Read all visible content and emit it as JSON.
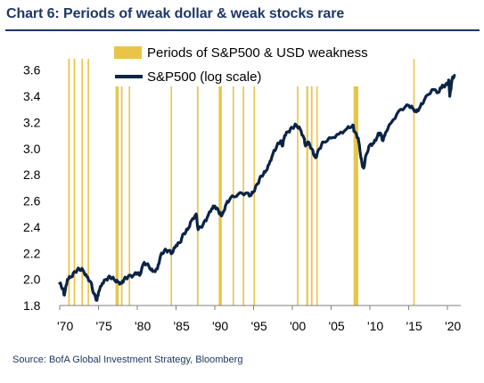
{
  "title": "Chart 6: Periods of weak dollar & weak stocks rare",
  "source": "Source: BofA Global Investment Strategy, Bloomberg",
  "colors": {
    "title": "#1f3864",
    "band": "#e8c547",
    "line": "#0b2446",
    "axis": "#7f7f7f"
  },
  "chart_data": {
    "type": "line",
    "title": "Chart 6: Periods of weak dollar & weak stocks rare",
    "xlabel": "",
    "ylabel": "",
    "xlim": [
      1970,
      2021.5
    ],
    "ylim": [
      1.8,
      3.7
    ],
    "x_ticks": [
      1970,
      1975,
      1980,
      1985,
      1990,
      1995,
      2000,
      2005,
      2010,
      2015,
      2020
    ],
    "x_tick_labels": [
      "'70",
      "'75",
      "'80",
      "'85",
      "'90",
      "'95",
      "'00",
      "'05",
      "'10",
      "'15",
      "'20"
    ],
    "y_ticks": [
      1.8,
      2.0,
      2.2,
      2.4,
      2.6,
      2.8,
      3.0,
      3.2,
      3.4,
      3.6
    ],
    "y_tick_labels": [
      "1.8",
      "2.0",
      "2.2",
      "2.4",
      "2.6",
      "2.8",
      "3.0",
      "3.2",
      "3.4",
      "3.6"
    ],
    "legend": [
      "Periods of S&P500 & USD weakness",
      "S&P500 (log scale)"
    ],
    "legend_position": "top",
    "grid": false,
    "weakness_periods": [
      [
        1971.1,
        1971.3
      ],
      [
        1971.8,
        1972.0
      ],
      [
        1972.8,
        1973.0
      ],
      [
        1973.6,
        1973.75
      ],
      [
        1977.2,
        1977.6
      ],
      [
        1977.9,
        1978.1
      ],
      [
        1978.9,
        1979.0
      ],
      [
        1984.3,
        1984.45
      ],
      [
        1987.7,
        1987.9
      ],
      [
        1990.5,
        1990.9
      ],
      [
        1992.3,
        1992.45
      ],
      [
        1993.6,
        1993.75
      ],
      [
        1995.0,
        1995.1
      ],
      [
        2000.6,
        2000.75
      ],
      [
        2001.8,
        2002.05
      ],
      [
        2002.4,
        2002.6
      ],
      [
        2003.1,
        2003.25
      ],
      [
        2007.9,
        2008.5
      ],
      [
        2015.6,
        2015.75
      ]
    ],
    "series": [
      {
        "name": "S&P500 (log scale)",
        "x": [
          1970.0,
          1970.4,
          1970.6,
          1971.0,
          1971.5,
          1972.0,
          1972.5,
          1973.0,
          1973.5,
          1974.0,
          1974.4,
          1974.8,
          1975.0,
          1975.5,
          1976.0,
          1976.5,
          1977.0,
          1977.5,
          1978.0,
          1978.3,
          1978.8,
          1979.5,
          1980.0,
          1980.3,
          1980.9,
          1981.5,
          1982.0,
          1982.6,
          1983.0,
          1983.5,
          1984.0,
          1984.5,
          1985.0,
          1985.5,
          1986.0,
          1986.5,
          1987.0,
          1987.6,
          1987.85,
          1988.5,
          1989.0,
          1989.6,
          1990.0,
          1990.5,
          1990.8,
          1991.0,
          1991.5,
          1992.0,
          1993.0,
          1994.0,
          1994.6,
          1995.0,
          1995.5,
          1996.0,
          1996.5,
          1997.0,
          1997.5,
          1998.0,
          1998.5,
          1998.75,
          1999.0,
          1999.5,
          2000.0,
          2000.5,
          2001.0,
          2001.5,
          2001.7,
          2002.0,
          2002.5,
          2002.8,
          2003.0,
          2003.5,
          2004.0,
          2005.0,
          2006.0,
          2007.0,
          2007.8,
          2008.0,
          2008.5,
          2008.8,
          2009.0,
          2009.2,
          2009.5,
          2010.0,
          2010.5,
          2011.0,
          2011.3,
          2011.7,
          2012.0,
          2013.0,
          2014.0,
          2015.0,
          2015.5,
          2016.0,
          2016.5,
          2017.0,
          2018.0,
          2018.9,
          2019.2,
          2019.5,
          2020.0,
          2020.2,
          2020.3,
          2020.6,
          2020.9
        ],
        "values": [
          1.97,
          1.93,
          1.88,
          2.0,
          2.02,
          2.06,
          2.08,
          2.07,
          2.02,
          1.98,
          1.89,
          1.84,
          1.9,
          1.97,
          2.0,
          2.02,
          2.0,
          1.98,
          1.97,
          2.0,
          2.02,
          2.03,
          2.05,
          2.03,
          2.13,
          2.1,
          2.06,
          2.08,
          2.18,
          2.22,
          2.22,
          2.2,
          2.26,
          2.28,
          2.35,
          2.38,
          2.45,
          2.5,
          2.38,
          2.42,
          2.47,
          2.54,
          2.56,
          2.52,
          2.49,
          2.5,
          2.58,
          2.62,
          2.65,
          2.66,
          2.64,
          2.67,
          2.73,
          2.79,
          2.82,
          2.88,
          2.96,
          3.02,
          3.06,
          3.02,
          3.1,
          3.13,
          3.16,
          3.18,
          3.15,
          3.08,
          3.02,
          3.05,
          3.0,
          2.95,
          2.93,
          3.0,
          3.05,
          3.08,
          3.11,
          3.15,
          3.18,
          3.13,
          3.08,
          2.95,
          2.88,
          2.85,
          2.95,
          3.03,
          3.04,
          3.1,
          3.12,
          3.06,
          3.12,
          3.22,
          3.3,
          3.33,
          3.31,
          3.28,
          3.32,
          3.37,
          3.45,
          3.43,
          3.47,
          3.48,
          3.49,
          3.52,
          3.4,
          3.53,
          3.56
        ]
      }
    ]
  }
}
